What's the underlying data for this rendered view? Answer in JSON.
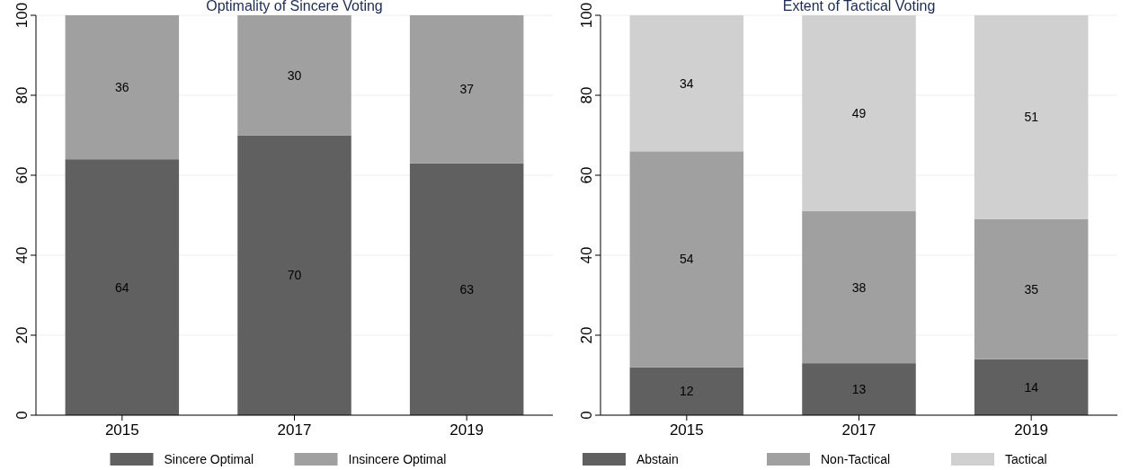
{
  "chart_data": [
    {
      "type": "bar",
      "stacked": true,
      "title": "Optimality of Sincere Voting",
      "categories": [
        "2015",
        "2017",
        "2019"
      ],
      "series": [
        {
          "name": "Sincere Optimal",
          "color": "#606060",
          "values": [
            64,
            70,
            63
          ]
        },
        {
          "name": "Insincere Optimal",
          "color": "#a0a0a0",
          "values": [
            36,
            30,
            37
          ]
        }
      ],
      "ylim": [
        0,
        100
      ],
      "yticks": [
        0,
        20,
        40,
        60,
        80,
        100
      ],
      "grid": "y",
      "legend": "bottom",
      "data_labels": true
    },
    {
      "type": "bar",
      "stacked": true,
      "title": "Extent of Tactical Voting",
      "categories": [
        "2015",
        "2017",
        "2019"
      ],
      "series": [
        {
          "name": "Abstain",
          "color": "#606060",
          "values": [
            12,
            13,
            14
          ]
        },
        {
          "name": "Non-Tactical",
          "color": "#a0a0a0",
          "values": [
            54,
            38,
            35
          ]
        },
        {
          "name": "Tactical",
          "color": "#d0d0d0",
          "values": [
            34,
            49,
            51
          ]
        }
      ],
      "ylim": [
        0,
        100
      ],
      "yticks": [
        0,
        20,
        40,
        60,
        80,
        100
      ],
      "grid": "y",
      "legend": "bottom",
      "data_labels": true
    }
  ]
}
